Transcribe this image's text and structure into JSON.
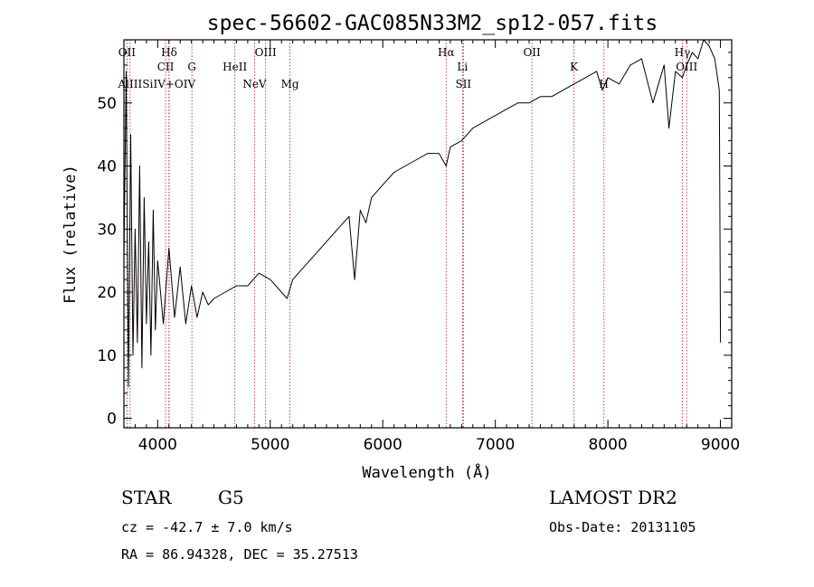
{
  "chart_data": {
    "type": "line",
    "title": "spec-56602-GAC085N33M2_sp12-057.fits",
    "xlabel": "Wavelength (Å)",
    "ylabel": "Flux (relative)",
    "xlim": [
      3700,
      9100
    ],
    "ylim": [
      -1.5,
      60
    ],
    "x_ticks": [
      4000,
      5000,
      6000,
      7000,
      8000,
      9000
    ],
    "y_ticks": [
      0,
      10,
      20,
      30,
      40,
      50
    ],
    "series": [
      {
        "x": [
          3700,
          3720,
          3740,
          3760,
          3780,
          3800,
          3820,
          3840,
          3860,
          3880,
          3900,
          3920,
          3940,
          3960,
          3980,
          4000,
          4050,
          4100,
          4150,
          4200,
          4250,
          4300,
          4350,
          4400,
          4450,
          4500,
          4600,
          4700,
          4800,
          4900,
          5000,
          5100,
          5150,
          5200,
          5300,
          5400,
          5500,
          5600,
          5700,
          5750,
          5800,
          5850,
          5900,
          6000,
          6100,
          6200,
          6300,
          6400,
          6500,
          6563,
          6600,
          6700,
          6800,
          6900,
          7000,
          7100,
          7200,
          7300,
          7400,
          7500,
          7600,
          7700,
          7800,
          7900,
          7950,
          8000,
          8100,
          8200,
          8300,
          8400,
          8500,
          8542,
          8600,
          8662,
          8700,
          8750,
          8800,
          8850,
          8900,
          8950,
          8990,
          9000
        ],
        "y": [
          25,
          55,
          5,
          45,
          10,
          30,
          12,
          40,
          8,
          35,
          15,
          28,
          10,
          33,
          14,
          25,
          15,
          27,
          16,
          24,
          15,
          21,
          16,
          20,
          18,
          19,
          20,
          21,
          21,
          23,
          22,
          20,
          19,
          22,
          24,
          26,
          28,
          30,
          32,
          22,
          33,
          31,
          35,
          37,
          39,
          40,
          41,
          42,
          42,
          40,
          43,
          44,
          46,
          47,
          48,
          49,
          50,
          50,
          51,
          51,
          52,
          53,
          54,
          55,
          52,
          54,
          53,
          56,
          57,
          50,
          56,
          46,
          55,
          54,
          56,
          58,
          57,
          60,
          59,
          57,
          52,
          12
        ]
      }
    ],
    "line_marks": [
      {
        "label": "AlIII",
        "x": 3755
      },
      {
        "label": "OII",
        "x": 3727
      },
      {
        "label": "CII",
        "x": 4070
      },
      {
        "label": "SiIV+OIV",
        "x": 4100
      },
      {
        "label": "Hδ",
        "x": 4102
      },
      {
        "label": "G",
        "x": 4304
      },
      {
        "label": "NeV",
        "x": 4861
      },
      {
        "label": "OIII",
        "x": 4959
      },
      {
        "label": "HeII",
        "x": 4686
      },
      {
        "label": "Mg",
        "x": 5175
      },
      {
        "label": "Hα",
        "x": 6563
      },
      {
        "label": "Li",
        "x": 6708
      },
      {
        "label": "SII",
        "x": 6716
      },
      {
        "label": "OII",
        "x": 7325
      },
      {
        "label": "K",
        "x": 7699
      },
      {
        "label": "H",
        "x": 7965
      },
      {
        "label": "Hγ",
        "x": 8662
      },
      {
        "label": "OIII",
        "x": 8700
      }
    ],
    "legend_line_color": "#b22222",
    "grid": false
  },
  "info": {
    "object_class": "STAR",
    "subclass": "G5",
    "survey": "LAMOST DR2",
    "cz": "cz = -42.7 ± 7.0 km/s",
    "obs_date": "Obs-Date: 20131105",
    "coords": "RA =  86.94328, DEC =  35.27513"
  }
}
